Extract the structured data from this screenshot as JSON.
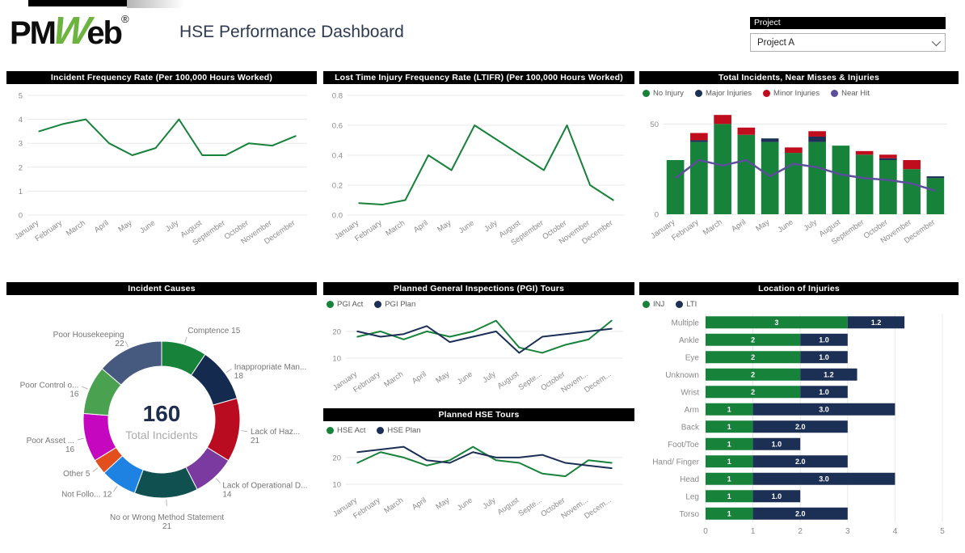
{
  "header": {
    "logo_pm": "PM",
    "logo_w": "W",
    "logo_eb": "eb",
    "logo_reg": "®",
    "title": "HSE Performance Dashboard",
    "slicer": {
      "label": "Project",
      "value": "Project A"
    }
  },
  "colors": {
    "green": "#17823a",
    "navy": "#1c2f55",
    "red": "#bf0d1e",
    "purple": "#5c4e9b",
    "title_bar": "#000000",
    "axis_text": "#8a8a8a"
  },
  "chart_data": [
    {
      "type": "line",
      "title": "Incident Frequency Rate (Per 100,000 Hours Worked)",
      "categories": [
        "January",
        "February",
        "March",
        "April",
        "May",
        "June",
        "July",
        "August",
        "September",
        "October",
        "November",
        "December"
      ],
      "series": [
        {
          "name": "Incident Frequency Rate",
          "color": "#17823a",
          "values": [
            3.5,
            3.8,
            4,
            3,
            2.5,
            2.8,
            4,
            2.5,
            2.5,
            3,
            2.9,
            3.3
          ]
        }
      ],
      "ylim": [
        0,
        5
      ],
      "yticks": [
        {
          "v": 0,
          "label": "0"
        },
        {
          "v": 1,
          "label": "1"
        },
        {
          "v": 2,
          "label": "2"
        },
        {
          "v": 3,
          "label": "3"
        },
        {
          "v": 4,
          "label": "4"
        },
        {
          "v": 5,
          "label": "5"
        }
      ],
      "grid": true,
      "legend": false
    },
    {
      "type": "line",
      "title": "Lost Time Injury Frequency Rate (LTIFR) (Per 100,000 Hours Worked)",
      "categories": [
        "January",
        "February",
        "March",
        "April",
        "May",
        "June",
        "July",
        "August",
        "September",
        "October",
        "November",
        "December"
      ],
      "series": [
        {
          "name": "LTIFR",
          "color": "#17823a",
          "values": [
            0.08,
            0.07,
            0.1,
            0.4,
            0.3,
            0.6,
            0.5,
            0.4,
            0.3,
            0.6,
            0.2,
            0.1
          ]
        }
      ],
      "ylim": [
        0,
        0.8
      ],
      "yticks": [
        {
          "v": 0,
          "label": "0.0"
        },
        {
          "v": 0.2,
          "label": "0.2"
        },
        {
          "v": 0.4,
          "label": "0.4"
        },
        {
          "v": 0.6,
          "label": "0.6"
        },
        {
          "v": 0.8,
          "label": "0.8"
        }
      ],
      "grid": true,
      "legend": false
    },
    {
      "type": "stacked-bar",
      "title": "Total Incidents, Near Misses & Injuries",
      "categories": [
        "January",
        "February",
        "March",
        "April",
        "May",
        "June",
        "July",
        "August",
        "September",
        "October",
        "November",
        "December"
      ],
      "series": [
        {
          "name": "No Injury",
          "color": "#17823a",
          "values": [
            30,
            40,
            50,
            44,
            40,
            34,
            40,
            38,
            33,
            30,
            25,
            20
          ]
        },
        {
          "name": "Major Injuries",
          "color": "#1c2f55",
          "values": [
            0,
            1,
            0,
            0,
            2,
            0,
            3,
            0,
            0,
            1,
            0,
            1
          ]
        },
        {
          "name": "Minor Injuries",
          "color": "#bf0d1e",
          "values": [
            0,
            4,
            5,
            4,
            0,
            3,
            3,
            0,
            2,
            2,
            5,
            0
          ]
        }
      ],
      "line": {
        "name": "Near Hit",
        "color": "#5c4e9b",
        "values": [
          20,
          30,
          27,
          30,
          21,
          28,
          26,
          22,
          20,
          19,
          17,
          13
        ]
      },
      "ylim": [
        0,
        60
      ],
      "yticks": [
        {
          "v": 0,
          "label": "0"
        },
        {
          "v": 50,
          "label": "50"
        }
      ],
      "grid": true,
      "legend": "top"
    },
    {
      "type": "donut",
      "title": "Incident Causes",
      "center_value": "160",
      "center_label": "Total Incidents",
      "slices": [
        {
          "label": "Comptence",
          "value": 15,
          "color": "#17823a",
          "lines": [
            "Comptence 15"
          ]
        },
        {
          "label": "Inappropriate Man...",
          "value": 18,
          "color": "#152a4f",
          "lines": [
            "Inappropriate Man...",
            "18"
          ]
        },
        {
          "label": "Lack of Haz...",
          "value": 21,
          "color": "#b90c21",
          "lines": [
            "Lack of Haz...",
            "21"
          ]
        },
        {
          "label": "Lack of Operational D...",
          "value": 14,
          "color": "#7a3aa0",
          "lines": [
            "Lack of Operational D...",
            "14"
          ]
        },
        {
          "label": "No or Wrong Method Statement",
          "value": 21,
          "color": "#115050",
          "lines": [
            "No or Wrong Method Statement",
            "21"
          ]
        },
        {
          "label": "Not Follo...",
          "value": 12,
          "color": "#1d82e2",
          "lines": [
            "Not Follo... 12"
          ]
        },
        {
          "label": "Other",
          "value": 5,
          "color": "#e34e1d",
          "lines": [
            "Other 5"
          ]
        },
        {
          "label": "Poor Asset ...",
          "value": 16,
          "color": "#c508c0",
          "lines": [
            "Poor Asset ...",
            "16"
          ]
        },
        {
          "label": "Poor Control o...",
          "value": 16,
          "color": "#4aa14f",
          "lines": [
            "Poor Control o...",
            "16"
          ]
        },
        {
          "label": "Poor Housekeeping",
          "value": 22,
          "color": "#46597e",
          "lines": [
            "Poor Housekeeping",
            "22"
          ]
        }
      ],
      "legend": false
    },
    {
      "type": "line",
      "title": "Planned General Inspections (PGI) Tours",
      "categories": [
        "January",
        "February",
        "March",
        "April",
        "May",
        "June",
        "July",
        "August",
        "Septe...",
        "October",
        "Novem...",
        "Decem..."
      ],
      "series": [
        {
          "name": "PGI Act",
          "color": "#17823a",
          "values": [
            18,
            20,
            17,
            20,
            18,
            20,
            24,
            14,
            12,
            15,
            17,
            24
          ]
        },
        {
          "name": "PGI Plan",
          "color": "#1c2f55",
          "values": [
            20,
            18,
            19,
            22,
            16,
            18,
            20,
            12,
            18,
            19,
            20,
            21
          ]
        }
      ],
      "ylim": [
        7,
        26
      ],
      "yticks": [
        {
          "v": 10,
          "label": "10"
        },
        {
          "v": 20,
          "label": "20"
        }
      ],
      "grid": true,
      "legend": "top"
    },
    {
      "type": "line",
      "title": "Planned HSE Tours",
      "categories": [
        "January",
        "February",
        "March",
        "April",
        "May",
        "June",
        "July",
        "August",
        "Septe...",
        "October",
        "Novem...",
        "Decem..."
      ],
      "series": [
        {
          "name": "HSE Act",
          "color": "#17823a",
          "values": [
            18,
            22,
            20,
            17,
            19,
            24,
            19,
            18,
            14,
            13,
            19,
            18
          ]
        },
        {
          "name": "HSE Plan",
          "color": "#1c2f55",
          "values": [
            22,
            23,
            24,
            19,
            18,
            22,
            20,
            20,
            21,
            18,
            17,
            16
          ]
        }
      ],
      "ylim": [
        7,
        26
      ],
      "yticks": [
        {
          "v": 10,
          "label": "10"
        },
        {
          "v": 20,
          "label": "20"
        }
      ],
      "grid": true,
      "legend": "top"
    },
    {
      "type": "h-stacked-bar",
      "title": "Location of Injuries",
      "categories": [
        "Multiple",
        "Ankle",
        "Eye",
        "Unknown",
        "Wrist",
        "Arm",
        "Back",
        "Foot/Toe",
        "Hand/ Finger",
        "Head",
        "Leg",
        "Torso"
      ],
      "series": [
        {
          "name": "INJ",
          "color": "#17823a",
          "values": [
            3,
            2,
            2,
            2,
            2,
            1,
            1,
            1,
            1,
            1,
            1,
            1
          ],
          "labels": [
            "3",
            "2",
            "2",
            "2",
            "2",
            "1",
            "1",
            "1",
            "1",
            "1",
            "1",
            "1"
          ]
        },
        {
          "name": "LTI",
          "color": "#1c2f55",
          "values": [
            1.2,
            1.0,
            1.0,
            1.2,
            1.0,
            3.0,
            2.0,
            1.0,
            2.0,
            3.0,
            1.0,
            2.0
          ],
          "labels": [
            "1.2",
            "1.0",
            "1.0",
            "1.2",
            "1.0",
            "3.0",
            "2.0",
            "1.0",
            "2.0",
            "3.0",
            "1.0",
            "2.0"
          ]
        }
      ],
      "xlim": [
        0,
        5
      ],
      "xticks": [
        "0",
        "1",
        "2",
        "3",
        "4",
        "5"
      ],
      "grid": true,
      "legend": "top"
    }
  ]
}
